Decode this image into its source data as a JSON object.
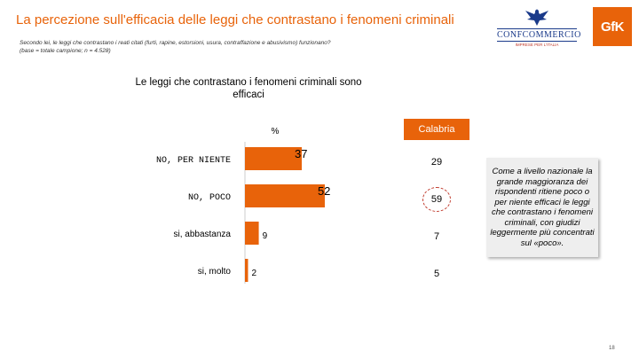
{
  "header": {
    "title": "La percezione sull'efficacia delle leggi che contrastano i fenomeni criminali",
    "question_line1": "Secondo lei, le leggi che contrastano i reati citati (furti, rapine, estorsioni, usura, contraffazione e abusivismo) funzionano?",
    "question_line2": "(base = totale campione; n = 4.528)"
  },
  "logos": {
    "confcommercio_name": "CONFCOMMERCIO",
    "confcommercio_sub": "IMPRESE PER L'ITALIA",
    "gfk": "GfK"
  },
  "chart_data": {
    "type": "bar",
    "title": "Le leggi che contrastano i fenomeni criminali sono efficaci",
    "unit_label": "%",
    "categories": [
      "NO, PER NIENTE",
      "NO, POCO",
      "si, abbastanza",
      "si, molto"
    ],
    "values": [
      37,
      52,
      9,
      2
    ],
    "bar_color": "#e8630a",
    "regional": {
      "name": "Calabria",
      "values": [
        "29",
        "59",
        "7",
        "5"
      ],
      "highlight_index": 1
    }
  },
  "note": "Come a livello nazionale la grande maggioranza dei rispondenti ritiene poco o per niente efficaci le leggi che contrastano i fenomeni criminali, con giudizi leggermente più concentrati sul «poco».",
  "page_number": "18"
}
